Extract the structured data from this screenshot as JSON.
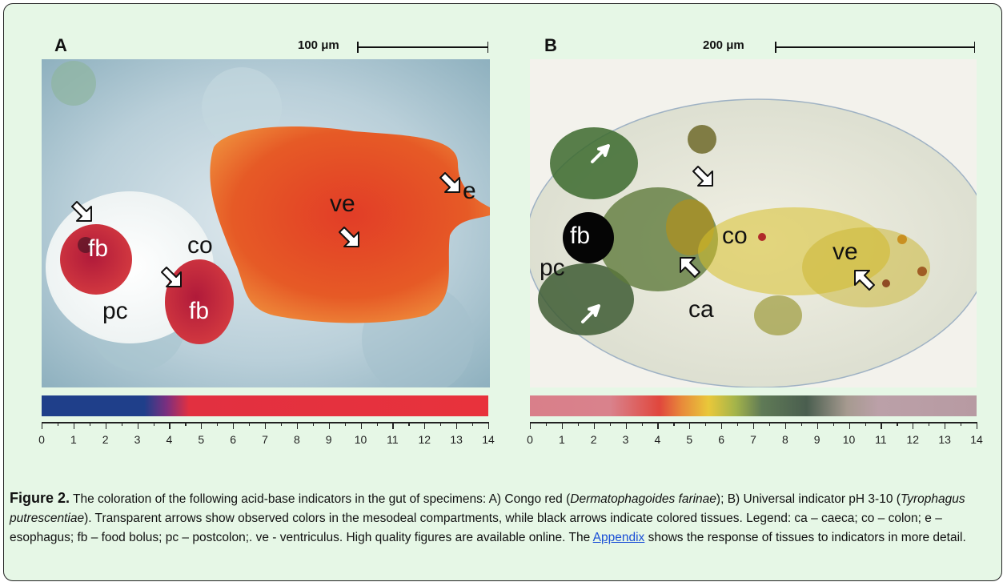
{
  "panels": {
    "a": {
      "letter": "A",
      "scale_text": "100 μm",
      "labels": {
        "fb1": "fb",
        "fb2": "fb",
        "pc": "pc",
        "co": "co",
        "ve": "ve",
        "e": "e"
      },
      "colorbar_ticks": [
        "0",
        "1",
        "2",
        "3",
        "4",
        "5",
        "6",
        "7",
        "8",
        "9",
        "10",
        "11",
        "12",
        "13",
        "14"
      ]
    },
    "b": {
      "letter": "B",
      "scale_text": "200 μm",
      "labels": {
        "fb": "fb",
        "pc": "pc",
        "co": "co",
        "ca": "ca",
        "ve": "ve"
      },
      "colorbar_ticks": [
        "0",
        "1",
        "2",
        "3",
        "4",
        "5",
        "6",
        "7",
        "8",
        "9",
        "10",
        "11",
        "12",
        "13",
        "14"
      ]
    }
  },
  "caption": {
    "figure_number": "Figure 2.",
    "part1": " The coloration of the following acid-base indicators in the gut of specimens: A) Congo red (",
    "species1": "Dermatophagoides farinae",
    "part2": "); B) Universal indicator pH 3-10 (",
    "species2": "Tyrophagus putrescentiae",
    "part3": "). Transparent arrows show observed colors in the mesodeal compartments, while black arrows indicate colored tissues. Legend: ca – caeca; co – colon; e – esophagus; fb – food bolus; pc – postcolon;. ve - ventriculus. High quality figures are available online. The ",
    "link_text": "Appendix",
    "part4": " shows the response of tissues to indicators in more detail."
  },
  "colors": {
    "box_background": "#e6f7e6",
    "link": "#1a4fd6",
    "congo_acid": "#1f3f8a",
    "congo_base": "#e8323c"
  }
}
